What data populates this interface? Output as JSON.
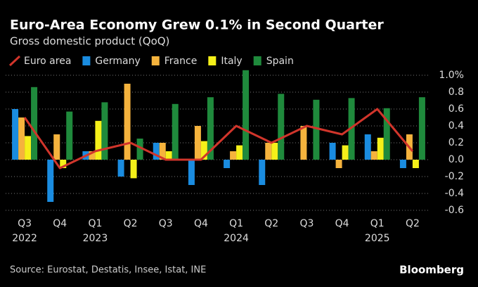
{
  "chart_data": {
    "type": "bar-line",
    "title": "Euro-Area Economy Grew 0.1% in Second Quarter",
    "subtitle": "Gross domestic product (QoQ)",
    "source": "Source: Eurostat, Destatis, Insee, Istat, INE",
    "brand": "Bloomberg",
    "categories": [
      "Q3",
      "Q4",
      "Q1",
      "Q2",
      "Q3",
      "Q4",
      "Q1",
      "Q2",
      "Q3",
      "Q4",
      "Q1",
      "Q2"
    ],
    "x_year_labels": [
      "2022",
      null,
      "2023",
      null,
      null,
      null,
      "2024",
      null,
      null,
      null,
      "2025",
      null
    ],
    "series": [
      {
        "name": "Euro area",
        "color": "#d1352b",
        "kind": "line",
        "values": [
          0.5,
          -0.1,
          0.1,
          0.2,
          0.0,
          0.0,
          0.4,
          0.2,
          0.4,
          0.3,
          0.6,
          0.1
        ]
      },
      {
        "name": "Germany",
        "color": "#1a8ce0",
        "kind": "bar",
        "values": [
          0.6,
          -0.5,
          0.1,
          -0.2,
          0.2,
          -0.3,
          -0.1,
          -0.3,
          0.0,
          0.2,
          0.3,
          -0.1
        ]
      },
      {
        "name": "France",
        "color": "#f5b33d",
        "kind": "bar",
        "values": [
          0.5,
          0.3,
          0.1,
          0.9,
          0.2,
          0.4,
          0.1,
          0.2,
          0.4,
          -0.1,
          0.1,
          0.3
        ]
      },
      {
        "name": "Italy",
        "color": "#f5f019",
        "kind": "bar",
        "values": [
          0.28,
          -0.1,
          0.46,
          -0.22,
          0.1,
          0.22,
          0.17,
          0.2,
          0.0,
          0.17,
          0.26,
          -0.1
        ]
      },
      {
        "name": "Spain",
        "color": "#1f8a3c",
        "kind": "bar",
        "values": [
          0.86,
          0.57,
          0.68,
          0.25,
          0.66,
          0.74,
          1.06,
          0.78,
          0.71,
          0.73,
          0.61,
          0.74
        ]
      }
    ],
    "ylim": [
      -0.6,
      1.0
    ],
    "yticks": [
      {
        "value": 1.0,
        "label": "1.0%"
      },
      0.8,
      0.6,
      0.4,
      0.2,
      {
        "value": 0,
        "label": "0.0"
      },
      -0.2,
      -0.4,
      -0.6
    ],
    "grid": true
  }
}
